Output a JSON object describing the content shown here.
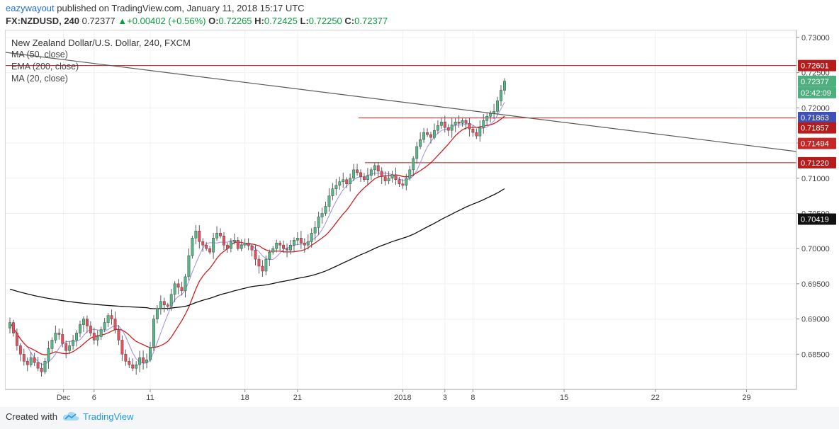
{
  "header": {
    "user": "eazywayout",
    "published_text": "published on TradingView.com, January 11, 2018 15:17 UTC",
    "symbol": "FX:NZDUSD, 240",
    "last": "0.72377",
    "change": "+0.00402 (+0.56%)",
    "open_label": "O:",
    "open": "0.72265",
    "high_label": "H:",
    "high": "0.72425",
    "low_label": "L:",
    "low": "0.72250",
    "close_label": "C:",
    "close": "0.72377"
  },
  "legend": {
    "title": "New Zealand Dollar/U.S. Dollar, 240, FXCM",
    "items": [
      "MA (50, close)",
      "EMA (200, close)",
      "MA (20, close)"
    ]
  },
  "footer": {
    "created_with": "Created with",
    "brand": "TradingView"
  },
  "colors": {
    "up": "#53b987",
    "down": "#eb4d5c",
    "ma50": "#cc1f1f",
    "ema200": "#111111",
    "ma20": "#9d8fe8",
    "trendline": "#5a5a5a",
    "hline": "#b71c1c"
  },
  "chart_data": {
    "type": "candlestick",
    "symbol": "NZDUSD",
    "timeframe": "240",
    "y_ticks": [
      "0.73000",
      "0.72500",
      "0.72000",
      "0.71500",
      "0.71000",
      "0.70500",
      "0.70000",
      "0.69500",
      "0.69000",
      "0.68500"
    ],
    "x_ticks": [
      "Dec",
      "6",
      "11",
      "18",
      "21",
      "2018",
      "3",
      "8",
      "15",
      "22",
      "29"
    ],
    "ylim": [
      0.68,
      0.731
    ],
    "price_labels": [
      {
        "value": "0.72601",
        "kind": "hline"
      },
      {
        "value": "0.72377",
        "kind": "last"
      },
      {
        "value": "02:42:09",
        "kind": "countdown"
      },
      {
        "value": "0.71863",
        "kind": "ma20"
      },
      {
        "value": "0.71857",
        "kind": "hline"
      },
      {
        "value": "0.71494",
        "kind": "ma50"
      },
      {
        "value": "0.71220",
        "kind": "hline"
      },
      {
        "value": "0.70419",
        "kind": "ema200"
      }
    ],
    "horizontal_lines": [
      0.72601,
      0.71857,
      0.7122
    ],
    "close_series": [
      0.6895,
      0.688,
      0.6862,
      0.685,
      0.684,
      0.6835,
      0.6845,
      0.6838,
      0.683,
      0.6825,
      0.684,
      0.6858,
      0.687,
      0.688,
      0.6878,
      0.6865,
      0.6855,
      0.6862,
      0.687,
      0.688,
      0.6892,
      0.69,
      0.689,
      0.688,
      0.687,
      0.6875,
      0.6885,
      0.6895,
      0.6905,
      0.69,
      0.6885,
      0.687,
      0.685,
      0.684,
      0.6835,
      0.683,
      0.6835,
      0.6845,
      0.6838,
      0.6842,
      0.686,
      0.69,
      0.6915,
      0.6925,
      0.692,
      0.6918,
      0.6935,
      0.695,
      0.6945,
      0.694,
      0.696,
      0.699,
      0.7015,
      0.7025,
      0.701,
      0.7005,
      0.7,
      0.6995,
      0.7015,
      0.7022,
      0.7018,
      0.7005,
      0.7,
      0.701,
      0.7012,
      0.7,
      0.7005,
      0.7008,
      0.7004,
      0.6998,
      0.6985,
      0.6975,
      0.6968,
      0.6985,
      0.6995,
      0.7,
      0.7008,
      0.7005,
      0.7,
      0.6998,
      0.7005,
      0.7012,
      0.7015,
      0.7008,
      0.7005,
      0.701,
      0.7022,
      0.703,
      0.7045,
      0.705,
      0.706,
      0.7075,
      0.7085,
      0.709,
      0.7095,
      0.7098,
      0.7092,
      0.71,
      0.7112,
      0.7108,
      0.7102,
      0.7098,
      0.7104,
      0.7112,
      0.7118,
      0.711,
      0.7102,
      0.7096,
      0.71,
      0.7105,
      0.7098,
      0.7092,
      0.709,
      0.71,
      0.7112,
      0.7128,
      0.7145,
      0.7155,
      0.7165,
      0.7162,
      0.7158,
      0.7168,
      0.7175,
      0.718,
      0.7172,
      0.7168,
      0.7176,
      0.718,
      0.7178,
      0.7182,
      0.7178,
      0.717,
      0.7165,
      0.716,
      0.7172,
      0.7182,
      0.7188,
      0.7192,
      0.7195,
      0.721,
      0.7225,
      0.7238
    ]
  }
}
